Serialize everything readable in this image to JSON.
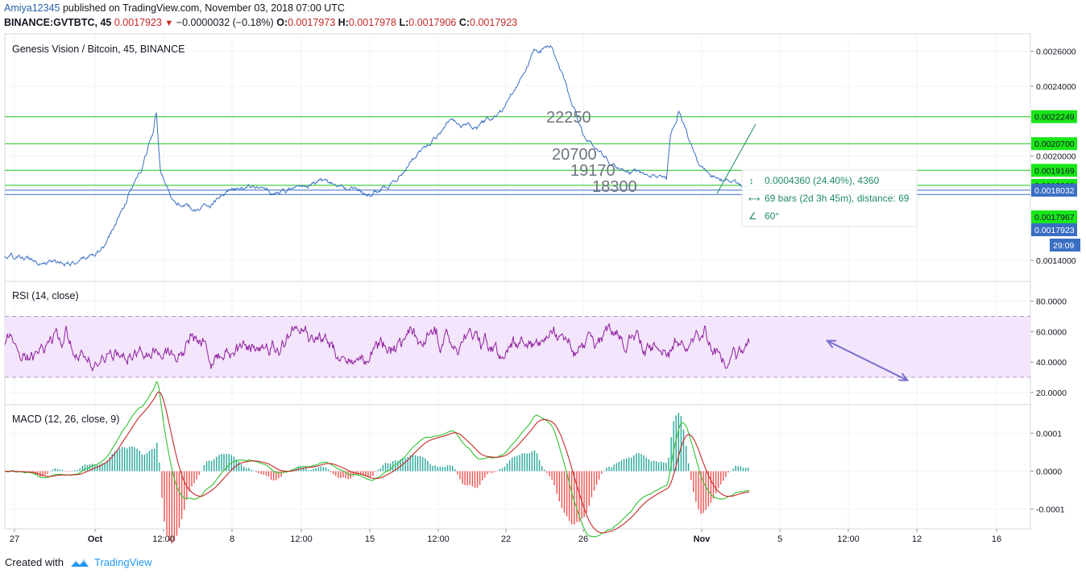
{
  "header": {
    "author": "Amiya12345",
    "published_text": "published on TradingView.com, November 03, 2018 07:00 UTC",
    "symbol": "BINANCE:GVTBTC, 45",
    "last": "0.0017923",
    "change": "−0.0000032 (−0.18%)",
    "o_label": "O:",
    "o_value": "0.0017973",
    "h_label": "H:",
    "h_value": "0.0017978",
    "l_label": "L:",
    "l_value": "0.0017906",
    "c_label": "C:",
    "c_value": "0.0017923"
  },
  "footer": {
    "created_with": "Created with",
    "brand": "TradingView"
  },
  "colors": {
    "price": "#3a6ec2",
    "level": "#19c219",
    "rsi": "#8e1f9e",
    "rsi_band": "#f3e5fb",
    "macd": "#32c232",
    "signal": "#c62828",
    "hist_pos": "#26a69a",
    "hist_neg": "#ef5350",
    "arrow": "#7a6fd0",
    "measure": "#1e8a68"
  },
  "chart_data": [
    {
      "type": "line",
      "title": "Genesis Vision / Bitcoin, 45, BINANCE",
      "y_ticks": [
        "0.0026000",
        "0.0024000",
        "0.0020000",
        "0.0014000"
      ],
      "y_tick_values": [
        0.0026,
        0.0024,
        0.002,
        0.0014
      ],
      "ylim": [
        0.00128,
        0.0027
      ],
      "x_tick_labels": [
        "27",
        "Oct",
        "12:00",
        "8",
        "12:00",
        "15",
        "12:00",
        "22",
        "26",
        "Nov",
        "5",
        "12:00",
        "12",
        "16"
      ],
      "series_keypoints": {
        "x": [
          0,
          0.09,
          0.12,
          0.135,
          0.15,
          0.165,
          0.18,
          0.183,
          0.188,
          0.2,
          0.23,
          0.27,
          0.3,
          0.33,
          0.38,
          0.42,
          0.44,
          0.47,
          0.5,
          0.52,
          0.54,
          0.57,
          0.6,
          0.64,
          0.66,
          0.68,
          0.7,
          0.74,
          0.77,
          0.8,
          0.805,
          0.815,
          0.84,
          0.87,
          0.9
        ],
        "y": [
          0.00142,
          0.00138,
          0.00148,
          0.00162,
          0.00178,
          0.00192,
          0.00215,
          0.00226,
          0.0019,
          0.00178,
          0.00168,
          0.00178,
          0.00183,
          0.00178,
          0.00185,
          0.00181,
          0.00179,
          0.00185,
          0.00202,
          0.0021,
          0.00222,
          0.00215,
          0.00225,
          0.0026,
          0.00262,
          0.00238,
          0.00212,
          0.00193,
          0.0019,
          0.00185,
          0.0021,
          0.00226,
          0.00192,
          0.00186,
          0.00179
        ]
      },
      "levels": [
        {
          "value": 0.0022249,
          "label": "0.0022249",
          "annotation": "22250"
        },
        {
          "value": 0.00207,
          "label": "0.0020700",
          "annotation": "20700"
        },
        {
          "value": 0.0019169,
          "label": "0.0019169",
          "annotation": "19170"
        },
        {
          "value": 0.0018308,
          "label": "0.0018308",
          "annotation": "18300"
        },
        {
          "value": 0.0018032,
          "label": "0.0018032",
          "annotation": ""
        }
      ],
      "price_tags": [
        {
          "value": 0.0017967,
          "label": "0.0017967"
        },
        {
          "value": 0.0017923,
          "label": "0.0017923"
        }
      ],
      "countdown": "29:09",
      "measure": {
        "line1": "0.0004360 (24.40%), 4360",
        "line2": "69 bars (2d 3h 45m), distance: 69",
        "line3": "60°"
      }
    },
    {
      "type": "line",
      "title": "RSI (14, close)",
      "y_ticks": [
        "80.0000",
        "60.0000",
        "40.0000",
        "20.0000"
      ],
      "y_tick_values": [
        80,
        60,
        40,
        20
      ],
      "ylim": [
        12,
        93
      ],
      "band": [
        30,
        70
      ],
      "arrow": {
        "from": [
          0.88,
          28
        ],
        "to": [
          0.99,
          54
        ]
      }
    },
    {
      "type": "line",
      "title": "MACD (12, 26, close, 9)",
      "y_ticks": [
        "0.0001",
        "0.0000",
        "-0.0001"
      ],
      "y_tick_values": [
        0.0001,
        0,
        -0.0001
      ],
      "ylim": [
        -0.000152,
        0.000175
      ],
      "series": [
        {
          "name": "MACD"
        },
        {
          "name": "Signal"
        },
        {
          "name": "Histogram"
        }
      ]
    }
  ]
}
